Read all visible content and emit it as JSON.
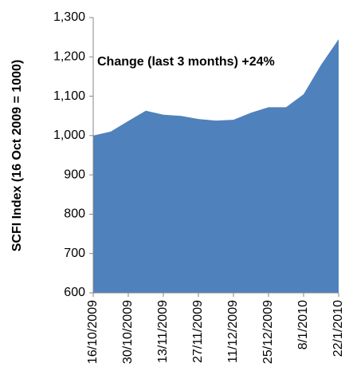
{
  "chart_data": {
    "type": "area",
    "ylabel": "SCFI Index (16 Oct 2009 = 1000)",
    "annotation": "Change (last 3 months) +24%",
    "categories": [
      "16/10/2009",
      null,
      "30/10/2009",
      null,
      "13/11/2009",
      null,
      "27/11/2009",
      null,
      "11/12/2009",
      null,
      "25/12/2009",
      null,
      "8/1/2010",
      null,
      "22/1/2010"
    ],
    "values": [
      1000,
      1010,
      1037,
      1063,
      1053,
      1050,
      1042,
      1038,
      1040,
      1058,
      1072,
      1072,
      1105,
      1180,
      1245
    ],
    "color": "#4f81bd",
    "ylim": [
      600,
      1300
    ],
    "yticks": [
      600,
      700,
      800,
      900,
      {
        "value": 1000,
        "label": "1,000"
      },
      {
        "value": 1100,
        "label": "1,100"
      },
      {
        "value": 1200,
        "label": "1,200"
      },
      {
        "value": 1300,
        "label": "1,300"
      }
    ],
    "grid": false
  }
}
